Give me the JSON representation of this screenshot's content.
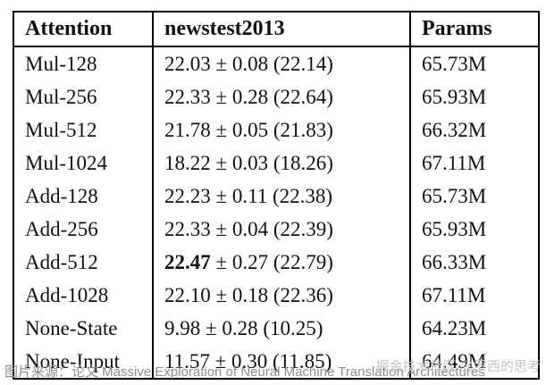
{
  "chart_data": {
    "type": "table",
    "columns": [
      "Attention",
      "newstest2013",
      "Params"
    ],
    "rows": [
      {
        "attention": "Mul-128",
        "score_mean": "22.03",
        "score_rest": " ± 0.08 (22.14)",
        "params": "65.73M",
        "bold_mean": false
      },
      {
        "attention": "Mul-256",
        "score_mean": "22.33",
        "score_rest": " ± 0.28 (22.64)",
        "params": "65.93M",
        "bold_mean": false
      },
      {
        "attention": "Mul-512",
        "score_mean": "21.78",
        "score_rest": " ± 0.05 (21.83)",
        "params": "66.32M",
        "bold_mean": false
      },
      {
        "attention": "Mul-1024",
        "score_mean": "18.22",
        "score_rest": " ± 0.03 (18.26)",
        "params": "67.11M",
        "bold_mean": false
      },
      {
        "attention": "Add-128",
        "score_mean": "22.23",
        "score_rest": " ± 0.11 (22.38)",
        "params": "65.73M",
        "bold_mean": false
      },
      {
        "attention": "Add-256",
        "score_mean": "22.33",
        "score_rest": " ± 0.04 (22.39)",
        "params": "65.93M",
        "bold_mean": false
      },
      {
        "attention": "Add-512",
        "score_mean": "22.47",
        "score_rest": " ± 0.27 (22.79)",
        "params": "66.33M",
        "bold_mean": true
      },
      {
        "attention": "Add-1028",
        "score_mean": "22.10",
        "score_rest": " ± 0.18 (22.36)",
        "params": "67.11M",
        "bold_mean": false
      },
      {
        "attention": "None-State",
        "score_mean": "9.98",
        "score_rest": " ± 0.28 (10.25)",
        "params": "64.23M",
        "bold_mean": false
      },
      {
        "attention": "None-Input",
        "score_mean": "11.57",
        "score_rest": " ± 0.30 (11.85)",
        "params": "64.49M",
        "bold_mean": false
      }
    ]
  },
  "caption": {
    "source": "图片来源：论文 Massive Exploration of Neural Machine Translation Architectures",
    "watermark": "掘金技术社区 @罗西的思考"
  }
}
